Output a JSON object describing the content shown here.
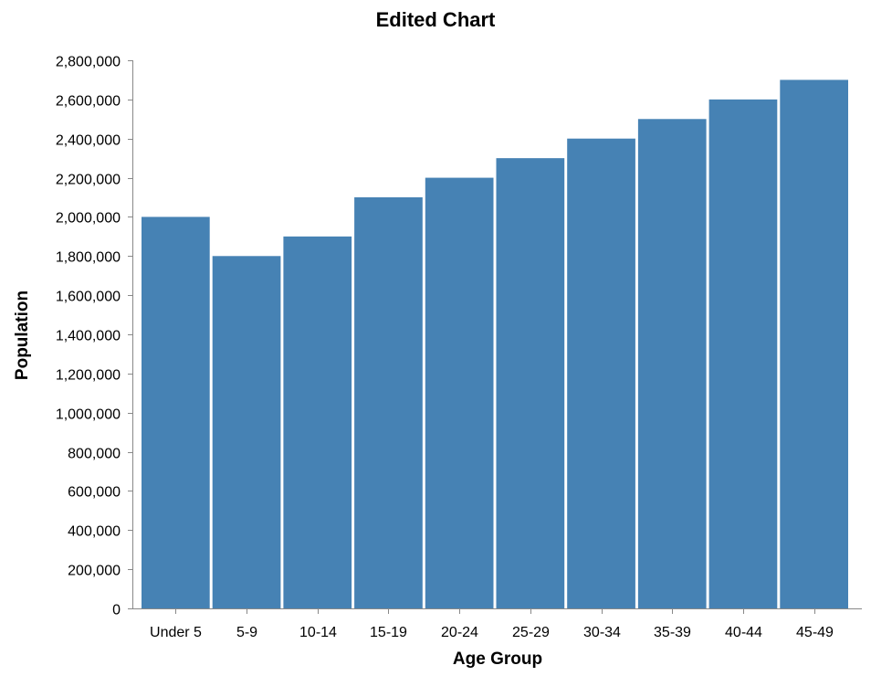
{
  "chart_data": {
    "type": "bar",
    "title": "Edited Chart",
    "xlabel": "Age Group",
    "ylabel": "Population",
    "categories": [
      "Under 5",
      "5-9",
      "10-14",
      "15-19",
      "20-24",
      "25-29",
      "30-34",
      "35-39",
      "40-44",
      "45-49"
    ],
    "values": [
      2000000,
      1800000,
      1900000,
      2100000,
      2200000,
      2300000,
      2400000,
      2500000,
      2600000,
      2700000
    ],
    "ylim": [
      0,
      2800000
    ],
    "yticks": [
      0,
      200000,
      400000,
      600000,
      800000,
      1000000,
      1200000,
      1400000,
      1600000,
      1800000,
      2000000,
      2200000,
      2400000,
      2600000,
      2800000
    ],
    "grid": false,
    "bar_color": "#4682b4"
  }
}
